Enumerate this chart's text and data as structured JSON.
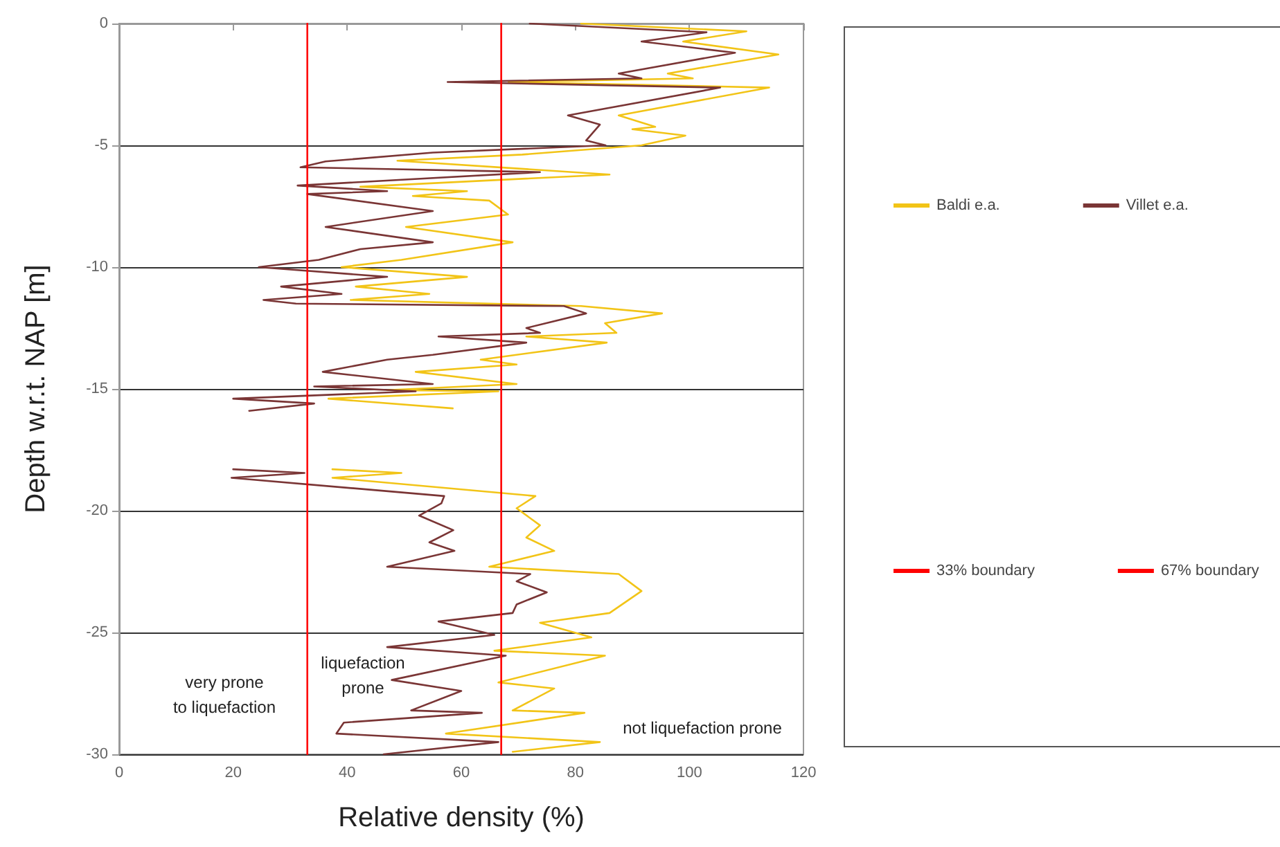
{
  "chart_data": {
    "type": "line",
    "xlabel": "Relative density (%)",
    "ylabel": "Depth w.r.t. NAP [m]",
    "xlim": [
      0,
      120
    ],
    "xticks": [
      0,
      20,
      40,
      60,
      80,
      100,
      120
    ],
    "ylim": [
      -30,
      0
    ],
    "yticks": [
      0,
      -5,
      -10,
      -15,
      -20,
      -25,
      -30
    ],
    "grid": "y",
    "legend": "right",
    "marker": "none",
    "line_style": "solid",
    "series": [
      {
        "name": "Baldi e.a.",
        "color": "#f2c417",
        "x": [
          81,
          110,
          98.9,
          115.6,
          96.2,
          100.6,
          68.3,
          114,
          87.6,
          94,
          90,
          99.3,
          91.6,
          70.7,
          48.8,
          86,
          42.3,
          61,
          51.5,
          64.9,
          68.2,
          50.3,
          69,
          49.5,
          39,
          61,
          41.5,
          54.4,
          40.6,
          81,
          95.2,
          85.2,
          87.2,
          71.4,
          85.5,
          63.4,
          69.7,
          52,
          69.7,
          47,
          66.5,
          36.7,
          58.5,
          null,
          37.4,
          49.5,
          37.4,
          73,
          69.7,
          73.8,
          71.4,
          76.3,
          64.9,
          87.6,
          91.6,
          86,
          73.8,
          82.8,
          65.8,
          85.2,
          66.5,
          76.3,
          69,
          81.6,
          57.3,
          84.3,
          69
        ],
        "values": [
          0,
          -0.32,
          -0.74,
          -1.27,
          -2.05,
          -2.25,
          -2.4,
          -2.63,
          -3.77,
          -4.24,
          -4.34,
          -4.6,
          -5,
          -5.38,
          -5.63,
          -6.2,
          -6.7,
          -6.88,
          -7.08,
          -7.27,
          -7.84,
          -8.35,
          -8.98,
          -9.7,
          -10,
          -10.4,
          -10.8,
          -11.1,
          -11.35,
          -11.6,
          -11.9,
          -12.3,
          -12.7,
          -12.85,
          -13.1,
          -13.8,
          -14,
          -14.3,
          -14.8,
          -15.05,
          -15.1,
          -15.4,
          -15.8,
          null,
          -18.3,
          -18.45,
          -18.65,
          -19.4,
          -19.9,
          -20.6,
          -21.1,
          -21.65,
          -22.3,
          -22.6,
          -23.3,
          -24.2,
          -24.6,
          -25.2,
          -25.75,
          -25.95,
          -27.05,
          -27.3,
          -28.2,
          -28.3,
          -29.15,
          -29.5,
          -29.9
        ]
      },
      {
        "name": "Villet e.a.",
        "color": "#7a3535",
        "x": [
          72,
          103,
          91.6,
          108,
          87.6,
          91.6,
          57.6,
          105.4,
          78.7,
          84.3,
          81.9,
          85.3,
          55,
          36.2,
          31.8,
          73.8,
          31.3,
          47,
          33,
          55,
          36.2,
          55,
          42.3,
          35,
          24.5,
          47,
          28.4,
          39,
          25.3,
          31,
          78,
          81.9,
          71.4,
          73.8,
          56,
          71.4,
          55,
          47,
          35.7,
          55,
          34.2,
          52,
          20,
          34.2,
          22.8,
          null,
          20,
          32.5,
          19.7,
          57,
          56.5,
          52.6,
          58.6,
          54.4,
          58.8,
          47,
          72.1,
          69.7,
          75,
          69.7,
          69,
          56,
          65.8,
          47,
          67.8,
          47.8,
          60,
          51.2,
          63.6,
          39.4,
          38.1,
          66.5,
          46.4
        ],
        "values": [
          0,
          -0.36,
          -0.74,
          -1.2,
          -2.05,
          -2.25,
          -2.4,
          -2.63,
          -3.77,
          -4.15,
          -4.8,
          -5,
          -5.3,
          -5.66,
          -5.9,
          -6.1,
          -6.65,
          -6.88,
          -7,
          -7.7,
          -8.35,
          -8.98,
          -9.26,
          -9.7,
          -10,
          -10.4,
          -10.8,
          -11.1,
          -11.35,
          -11.5,
          -11.6,
          -11.9,
          -12.5,
          -12.7,
          -12.85,
          -13.1,
          -13.6,
          -13.8,
          -14.3,
          -14.8,
          -14.9,
          -15.1,
          -15.4,
          -15.6,
          -15.9,
          null,
          -18.3,
          -18.45,
          -18.65,
          -19.4,
          -19.7,
          -20.2,
          -20.8,
          -21.3,
          -21.65,
          -22.3,
          -22.6,
          -22.9,
          -23.35,
          -23.85,
          -24.2,
          -24.55,
          -25.1,
          -25.6,
          -25.95,
          -26.95,
          -27.4,
          -28.2,
          -28.3,
          -28.7,
          -29.15,
          -29.5,
          -30
        ]
      },
      {
        "name": "33% boundary",
        "color": "#ff0000",
        "x": [
          33,
          33
        ],
        "values": [
          0,
          -30
        ]
      },
      {
        "name": "67% boundary",
        "color": "#ff0000",
        "x": [
          67,
          67
        ],
        "values": [
          0,
          -30
        ]
      }
    ],
    "annotations": [
      "very prone\nto liquefaction",
      "liquefaction\nprone",
      "not liquefaction prone"
    ]
  }
}
